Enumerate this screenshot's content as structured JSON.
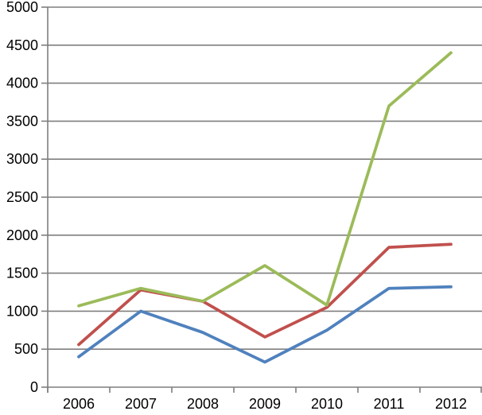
{
  "chart_data": {
    "type": "line",
    "title": "",
    "xlabel": "",
    "ylabel": "",
    "categories": [
      "2006",
      "2007",
      "2008",
      "2009",
      "2010",
      "2011",
      "2012"
    ],
    "series": [
      {
        "name": "blue-series",
        "color": "#4F81BD",
        "values": [
          400,
          1000,
          720,
          330,
          750,
          1300,
          1320
        ]
      },
      {
        "name": "red-series",
        "color": "#C0504D",
        "values": [
          560,
          1280,
          1130,
          660,
          1050,
          1840,
          1880
        ]
      },
      {
        "name": "green-series",
        "color": "#9BBB59",
        "values": [
          1070,
          1300,
          1130,
          1600,
          1080,
          3700,
          4400
        ]
      }
    ],
    "ylim": [
      0,
      5000
    ],
    "y_ticks": [
      0,
      500,
      1000,
      1500,
      2000,
      2500,
      3000,
      3500,
      4000,
      4500,
      5000
    ],
    "y_tick_labels": [
      "0",
      "500",
      "1000",
      "1500",
      "2000",
      "2500",
      "3000",
      "3500",
      "4000",
      "4500",
      "5000"
    ],
    "grid": true,
    "legend": false
  },
  "styles": {
    "background": "#ffffff",
    "grid_color": "#7f7f7f",
    "axis_color": "#7f7f7f",
    "label_color": "#000000",
    "line_width": 3.75
  }
}
